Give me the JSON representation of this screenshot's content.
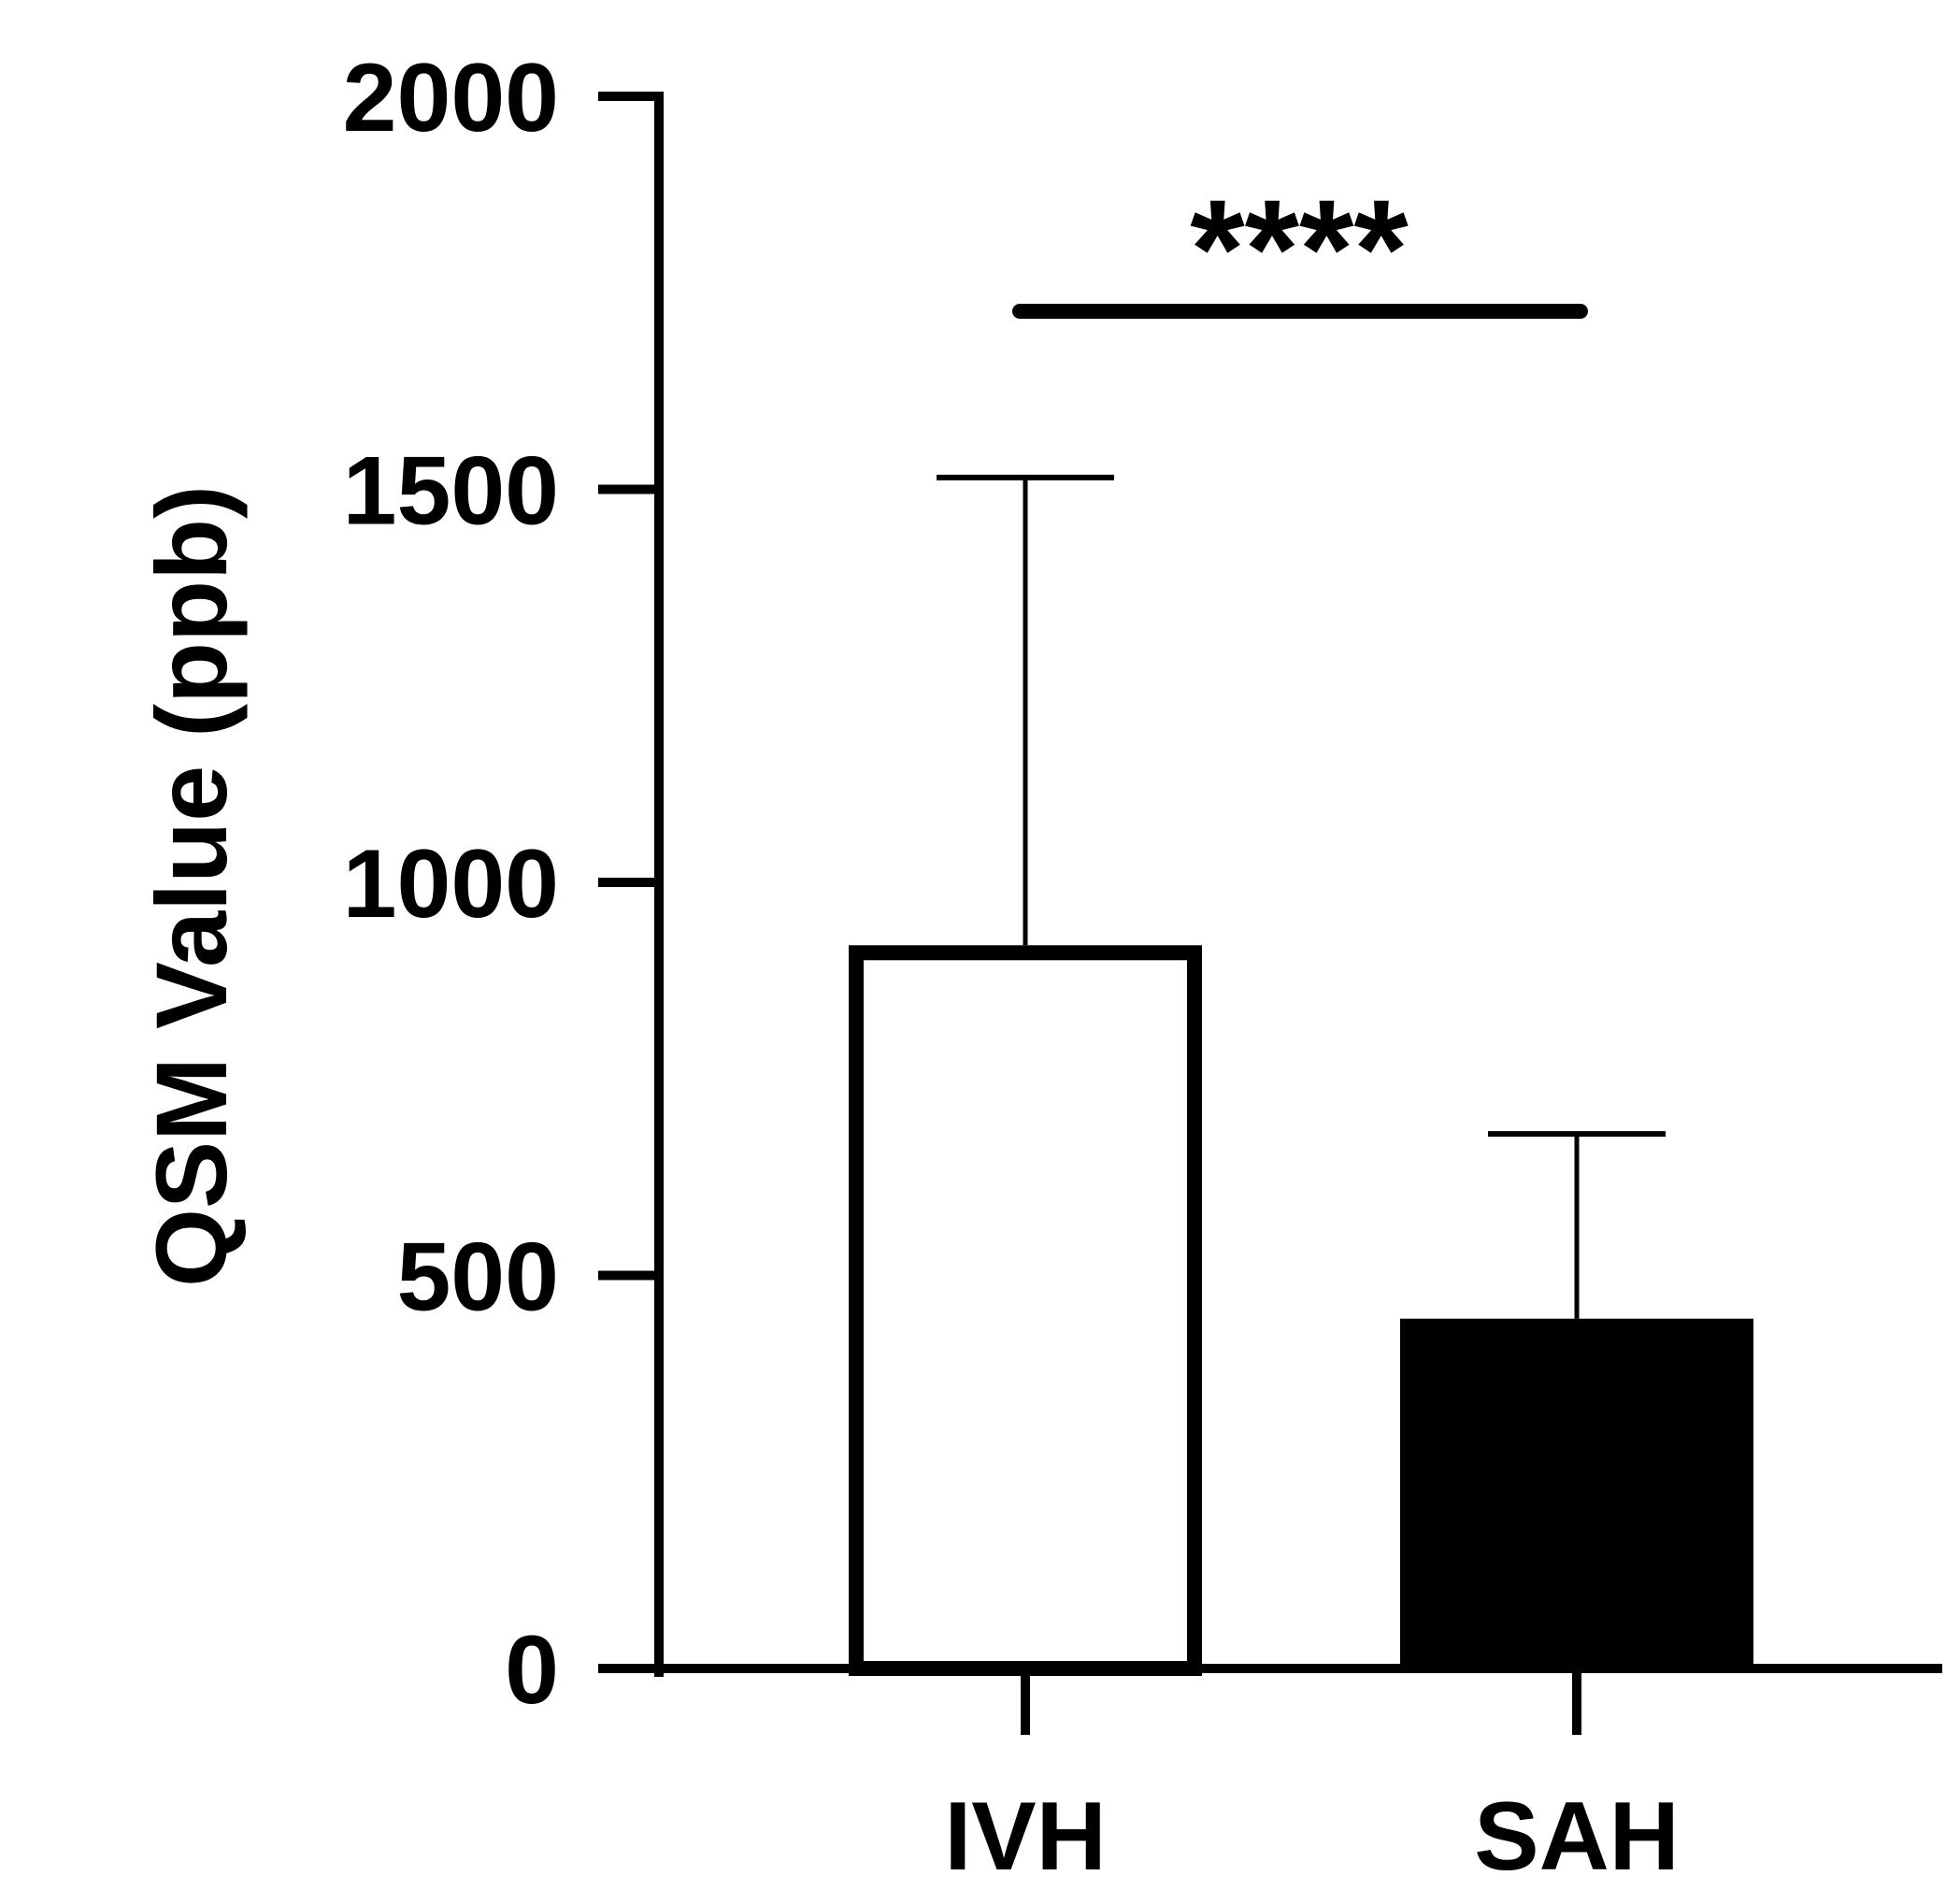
{
  "chart_data": {
    "type": "bar",
    "title": "",
    "xlabel": "",
    "ylabel": "QSM Value (ppb)",
    "ylim": [
      0,
      2000
    ],
    "yticks": [
      0,
      500,
      1000,
      1500,
      2000
    ],
    "ytick_labels": [
      "0",
      "500",
      "1000",
      "1500",
      "2000"
    ],
    "categories": [
      "IVH",
      "SAH"
    ],
    "values": [
      920,
      445
    ],
    "error_upper": [
      1515,
      680
    ],
    "bar_fills": [
      "#ffffff",
      "#000000"
    ],
    "bar_stroke": "#000000",
    "significance": {
      "label": "****",
      "between": [
        "IVH",
        "SAH"
      ]
    },
    "grid": false,
    "legend": "none"
  }
}
